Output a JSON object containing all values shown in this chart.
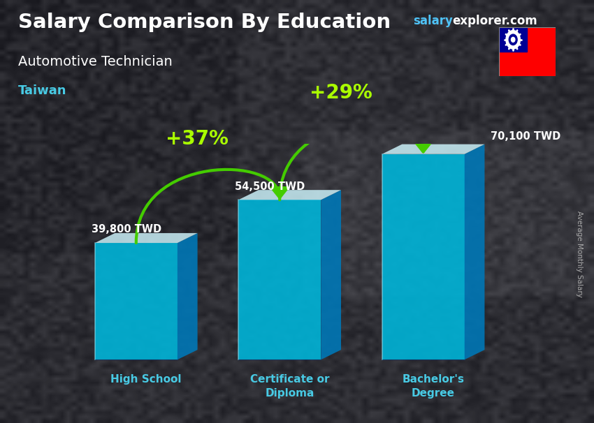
{
  "title": "Salary Comparison By Education",
  "subtitle": "Automotive Technician",
  "country": "Taiwan",
  "categories": [
    "High School",
    "Certificate or\nDiploma",
    "Bachelor's\nDegree"
  ],
  "values": [
    39800,
    54500,
    70100
  ],
  "value_labels": [
    "39,800 TWD",
    "54,500 TWD",
    "70,100 TWD"
  ],
  "pct_labels": [
    "+37%",
    "+29%"
  ],
  "bar_front_color": "#00b4d8",
  "bar_top_color": "#caf0f8",
  "bar_side_color": "#0077b6",
  "title_color": "#ffffff",
  "subtitle_color": "#ffffff",
  "country_color": "#48cae4",
  "brand_salary_color": "#4fc3f7",
  "brand_explorer_color": "#ffffff",
  "pct_color": "#aaff00",
  "arrow_color": "#44cc00",
  "value_color": "#ffffff",
  "label_color": "#48cae4",
  "ylabel": "Average Monthly Salary",
  "ylabel_color": "#aaaaaa",
  "bg_dark": "#1a1a2a",
  "bg_mid": "#2a2a3a",
  "figsize": [
    8.5,
    6.06
  ],
  "dpi": 100
}
